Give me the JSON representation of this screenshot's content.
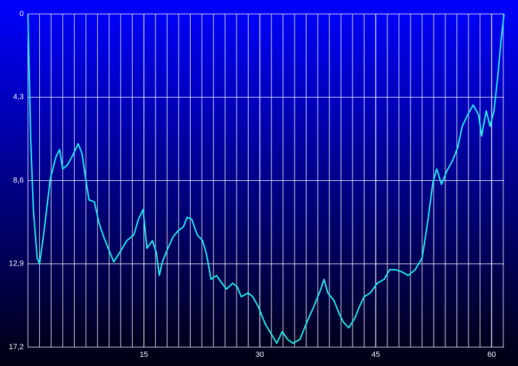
{
  "chart_data": {
    "type": "line",
    "x": [
      0,
      0.36,
      0.7,
      1.2,
      1.5,
      2.0,
      2.3,
      2.9,
      3.6,
      4.1,
      4.5,
      5.1,
      5.8,
      6.5,
      7.0,
      7.4,
      7.9,
      8.6,
      9.2,
      9.8,
      10.4,
      11.1,
      11.9,
      12.8,
      13.7,
      14.3,
      14.9,
      15.4,
      16.1,
      16.6,
      17.0,
      17.4,
      18.1,
      18.8,
      19.4,
      20.1,
      20.6,
      21.2,
      21.9,
      22.6,
      23.1,
      23.7,
      24.4,
      25.1,
      25.7,
      26.5,
      27.1,
      27.6,
      28.5,
      29.1,
      29.8,
      30.7,
      31.6,
      32.2,
      32.9,
      33.6,
      34.3,
      35.2,
      36.1,
      37.0,
      37.9,
      38.3,
      38.8,
      39.6,
      40.3,
      40.8,
      41.5,
      42.3,
      42.9,
      43.5,
      44.3,
      45.2,
      46.1,
      46.8,
      47.5,
      48.3,
      49.2,
      50.1,
      51.0,
      51.7,
      52.4,
      52.9,
      53.5,
      54.2,
      54.9,
      55.6,
      56.2,
      56.9,
      57.6,
      58.3,
      58.7,
      59.3,
      59.8,
      60.3,
      60.8,
      61.2,
      61.6
    ],
    "values": [
      0,
      6.5,
      10.1,
      12.6,
      12.9,
      11.5,
      10.5,
      8.5,
      7.4,
      7.0,
      8.0,
      7.8,
      7.3,
      6.7,
      7.2,
      8.3,
      9.6,
      9.7,
      10.8,
      11.5,
      12.1,
      12.8,
      12.3,
      11.7,
      11.4,
      10.6,
      10.1,
      12.1,
      11.7,
      12.3,
      13.5,
      12.8,
      12.1,
      11.5,
      11.2,
      11.0,
      10.5,
      10.6,
      11.4,
      11.7,
      12.4,
      13.7,
      13.5,
      13.9,
      14.2,
      13.9,
      14.1,
      14.6,
      14.4,
      14.6,
      15.1,
      16.0,
      16.6,
      17.0,
      16.4,
      16.8,
      17.0,
      16.8,
      15.9,
      15.1,
      14.2,
      13.7,
      14.4,
      14.8,
      15.5,
      15.9,
      16.2,
      15.7,
      15.1,
      14.6,
      14.4,
      13.9,
      13.7,
      13.2,
      13.2,
      13.3,
      13.5,
      13.2,
      12.6,
      10.8,
      8.7,
      8.0,
      8.8,
      8.1,
      7.6,
      6.9,
      5.8,
      5.2,
      4.7,
      5.2,
      6.3,
      5.0,
      5.8,
      5.0,
      3.2,
      1.4,
      0.0
    ],
    "color": "#22eeee",
    "xlim": [
      0,
      61.6
    ],
    "xticks": [
      15,
      30,
      45,
      60
    ],
    "x_minor_step": 1.5,
    "ylim": [
      0,
      17.2
    ],
    "y_inverted": true,
    "yticks": [
      0,
      {
        "value": 4.3,
        "label": "4,3"
      },
      {
        "value": 8.6,
        "label": "8,6"
      },
      {
        "value": 12.9,
        "label": "12,9"
      },
      {
        "value": 17.2,
        "label": "17,2"
      }
    ],
    "grid": true
  }
}
